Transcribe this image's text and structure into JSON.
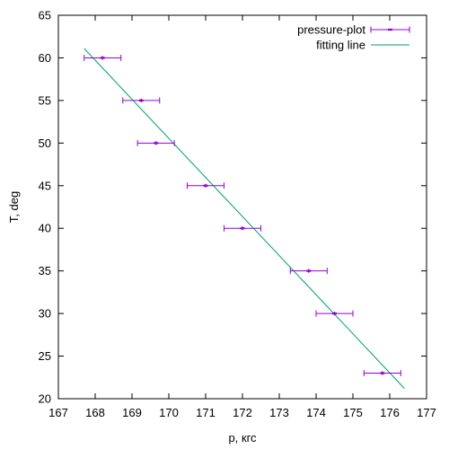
{
  "chart_data": {
    "type": "scatter",
    "xlabel": "p, кгс",
    "ylabel": "T, deg",
    "xlim": [
      167,
      177
    ],
    "ylim": [
      20,
      65
    ],
    "xticks": [
      167,
      168,
      169,
      170,
      171,
      172,
      173,
      174,
      175,
      176,
      177
    ],
    "yticks": [
      20,
      25,
      30,
      35,
      40,
      45,
      50,
      55,
      60,
      65
    ],
    "grid": false,
    "legend_position": "top-right",
    "series": [
      {
        "name": "pressure-plot",
        "kind": "points-with-x-error",
        "color": "#9400d3",
        "points": [
          {
            "x": 168.2,
            "y": 60,
            "xerr": 0.5
          },
          {
            "x": 169.25,
            "y": 55,
            "xerr": 0.5
          },
          {
            "x": 169.65,
            "y": 50,
            "xerr": 0.5
          },
          {
            "x": 171.0,
            "y": 45,
            "xerr": 0.5
          },
          {
            "x": 172.0,
            "y": 40,
            "xerr": 0.5
          },
          {
            "x": 173.8,
            "y": 35,
            "xerr": 0.5
          },
          {
            "x": 174.5,
            "y": 30,
            "xerr": 0.5
          },
          {
            "x": 175.8,
            "y": 23,
            "xerr": 0.5
          }
        ]
      },
      {
        "name": "fitting line",
        "kind": "line",
        "color": "#009e73",
        "points": [
          {
            "x": 167.7,
            "y": 61.1
          },
          {
            "x": 176.4,
            "y": 21.2
          }
        ]
      }
    ]
  }
}
